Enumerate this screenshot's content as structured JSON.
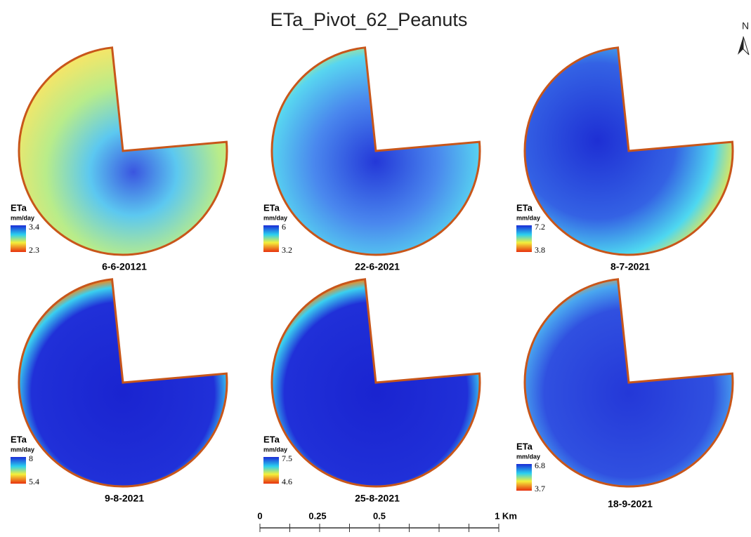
{
  "title": "ETa_Pivot_62_Peanuts",
  "north": "N",
  "panels": [
    {
      "legend_title": "ETa",
      "unit": "mm/day",
      "max": 3.4,
      "min": 2.3,
      "date": "6-6-20121"
    },
    {
      "legend_title": "ETa",
      "unit": "mm/day",
      "max": 6,
      "min": 3.2,
      "date": "22-6-2021"
    },
    {
      "legend_title": "ETa",
      "unit": "mm/day",
      "max": 7.2,
      "min": 3.8,
      "date": "8-7-2021"
    },
    {
      "legend_title": "ETa",
      "unit": "mm/day",
      "max": 8,
      "min": 5.4,
      "date": "9-8-2021"
    },
    {
      "legend_title": "ETa",
      "unit": "mm/day",
      "max": 7.5,
      "min": 4.6,
      "date": "25-8-2021"
    },
    {
      "legend_title": "ETa",
      "unit": "mm/day",
      "max": 6.8,
      "min": 3.7,
      "date": "18-9-2021"
    }
  ],
  "scale_bar": {
    "labels": [
      "0",
      "0.25",
      "0.5",
      "1 Km"
    ]
  }
}
